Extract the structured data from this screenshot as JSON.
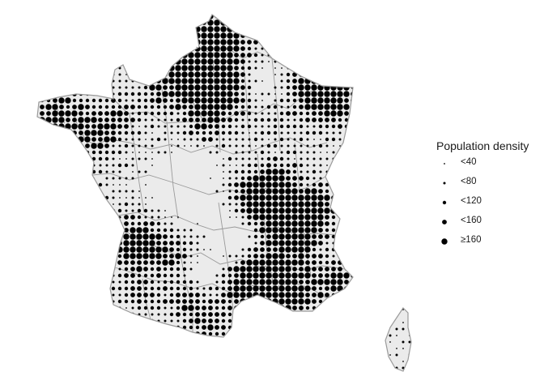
{
  "legend": {
    "title": "Population density",
    "classes": [
      {
        "label": "<40",
        "level": 1
      },
      {
        "label": "<80",
        "level": 2
      },
      {
        "label": "<120",
        "level": 3
      },
      {
        "label": "<160",
        "level": 4
      },
      {
        "label": "≥160",
        "level": 5
      }
    ]
  },
  "colors": {
    "land_fill": "#ebebeb",
    "border": "#9a9a9a",
    "dots": "#000000",
    "background": "#ffffff"
  },
  "map": {
    "subject": "France (mainland and Corsica), department boundaries",
    "symbol": "graduated dot grid"
  }
}
